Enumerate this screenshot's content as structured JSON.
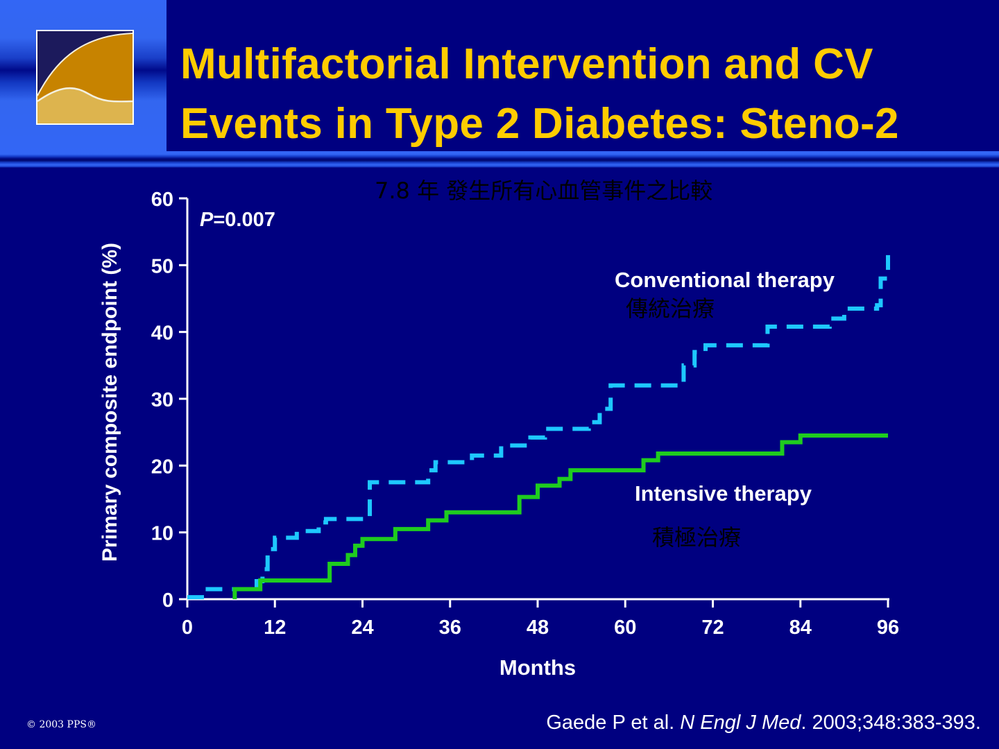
{
  "slide": {
    "title_line1": "Multifactorial Intervention and CV",
    "title_line2": "Events in Type 2 Diabetes: Steno-2",
    "subtitle_cn": "7.8 年  發生所有心血管事件之比較",
    "footer_copyright": "© 2003 PPS®",
    "footer_ref_authors": "Gaede P et al. ",
    "footer_ref_journal": "N Engl J Med",
    "footer_ref_details": ". 2003;348:383-393.",
    "colors": {
      "background": "#000080",
      "title": "#FFCC00",
      "conventional": "#1EC8FF",
      "intensive": "#1FCC1F",
      "axis": "#FFFFFF"
    }
  },
  "chart_data": {
    "type": "line",
    "title": "7.8 年  發生所有心血管事件之比較",
    "xlabel": "Months",
    "ylabel": "Primary composite endpoint (%)",
    "xlim": [
      0,
      96
    ],
    "ylim": [
      0,
      60
    ],
    "xticks": [
      0,
      12,
      24,
      36,
      48,
      60,
      72,
      84,
      96
    ],
    "yticks": [
      0,
      10,
      20,
      30,
      40,
      50,
      60
    ],
    "grid": false,
    "annotation": "P=0.007",
    "annotation_p_label": "P",
    "annotation_p_value": "=0.007",
    "series": [
      {
        "name": "Conventional therapy",
        "name_cn": "傳統治療",
        "style": "dashed",
        "step": true,
        "points": [
          [
            0,
            0.3
          ],
          [
            2.5,
            1.5
          ],
          [
            9.5,
            2.7
          ],
          [
            10.3,
            4.5
          ],
          [
            11,
            7.5
          ],
          [
            12,
            9.2
          ],
          [
            15,
            10.2
          ],
          [
            18,
            11.5
          ],
          [
            19,
            12
          ],
          [
            25,
            17.5
          ],
          [
            33,
            19.3
          ],
          [
            34,
            20.5
          ],
          [
            39,
            21.5
          ],
          [
            43,
            23
          ],
          [
            47,
            24.2
          ],
          [
            49,
            25.5
          ],
          [
            55,
            26.5
          ],
          [
            56.5,
            28.5
          ],
          [
            58,
            32
          ],
          [
            68,
            35
          ],
          [
            69.5,
            37
          ],
          [
            71,
            38
          ],
          [
            79.5,
            40.8
          ],
          [
            88,
            42
          ],
          [
            90,
            43.5
          ],
          [
            94.5,
            44
          ],
          [
            95,
            48
          ],
          [
            96,
            51.5
          ]
        ]
      },
      {
        "name": "Intensive therapy",
        "name_cn": "積極治療",
        "style": "solid",
        "step": true,
        "points": [
          [
            6.5,
            0
          ],
          [
            6.5,
            1.5
          ],
          [
            10,
            2.8
          ],
          [
            19.5,
            5.3
          ],
          [
            22,
            6.6
          ],
          [
            23,
            8
          ],
          [
            24,
            9
          ],
          [
            28.5,
            10.5
          ],
          [
            33,
            11.8
          ],
          [
            35.5,
            13
          ],
          [
            45.5,
            15.3
          ],
          [
            48,
            17
          ],
          [
            51,
            18
          ],
          [
            52.5,
            19.3
          ],
          [
            62.5,
            20.8
          ],
          [
            64.5,
            21.8
          ],
          [
            81.5,
            23.5
          ],
          [
            84,
            24.5
          ],
          [
            96,
            24.5
          ]
        ]
      }
    ]
  }
}
